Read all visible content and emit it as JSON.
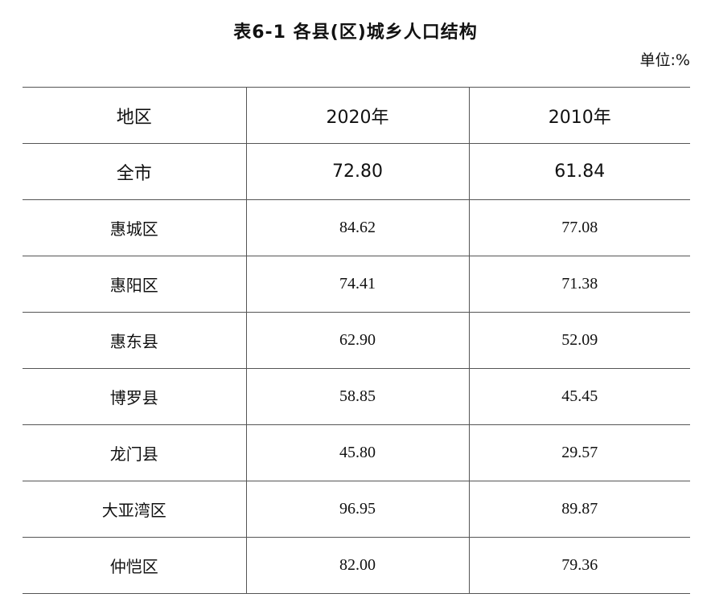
{
  "title": "表6-1   各县(区)城乡人口结构",
  "unit": "单位:%",
  "table": {
    "headers": [
      "地区",
      "2020年",
      "2010年"
    ],
    "rows": [
      {
        "region": "全市",
        "y2020": "72.80",
        "y2010": "61.84"
      },
      {
        "region": "惠城区",
        "y2020": "84.62",
        "y2010": "77.08"
      },
      {
        "region": "惠阳区",
        "y2020": "74.41",
        "y2010": "71.38"
      },
      {
        "region": "惠东县",
        "y2020": "62.90",
        "y2010": "52.09"
      },
      {
        "region": "博罗县",
        "y2020": "58.85",
        "y2010": "45.45"
      },
      {
        "region": "龙门县",
        "y2020": "45.80",
        "y2010": "29.57"
      },
      {
        "region": "大亚湾区",
        "y2020": "96.95",
        "y2010": "89.87"
      },
      {
        "region": "仲恺区",
        "y2020": "82.00",
        "y2010": "79.36"
      }
    ]
  }
}
